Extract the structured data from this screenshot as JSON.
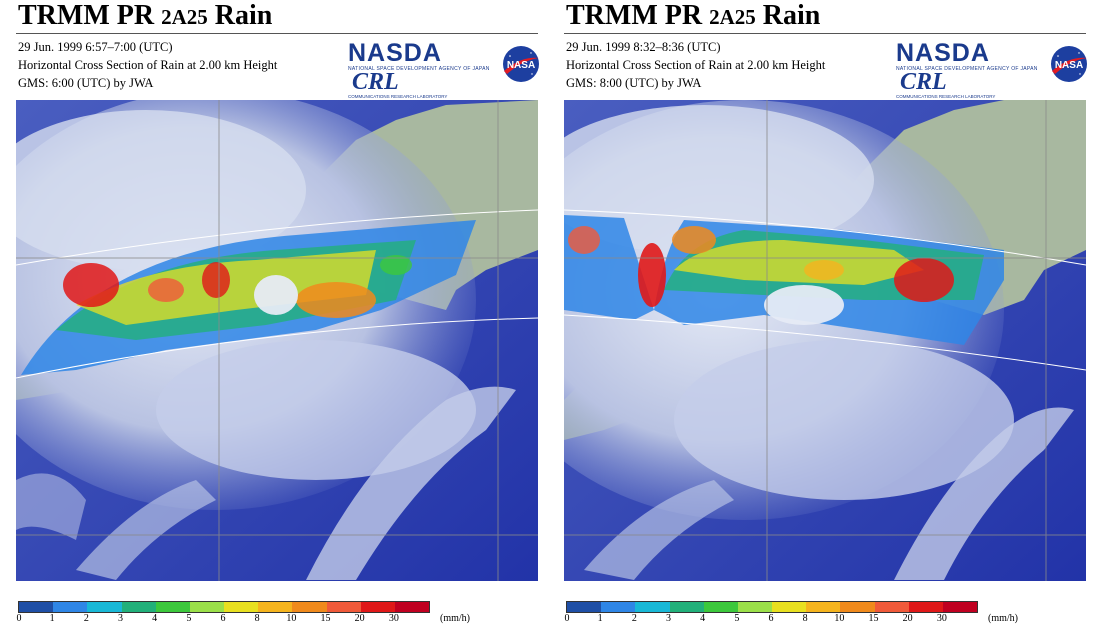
{
  "panels": [
    {
      "title_main": "TRMM PR ",
      "title_sub": "2A25",
      "title_end": " Rain",
      "line1": "29 Jun. 1999 6:57–7:00 (UTC)",
      "line2": "Horizontal Cross Section of Rain at 2.00 km Height",
      "line3": "GMS: 6:00 (UTC) by JWA"
    },
    {
      "title_main": "TRMM PR ",
      "title_sub": "2A25",
      "title_end": " Rain",
      "line1": "29 Jun. 1999 8:32–8:36 (UTC)",
      "line2": "Horizontal Cross Section of Rain at 2.00 km Height",
      "line3": "GMS: 8:00 (UTC) by JWA"
    }
  ],
  "logos": {
    "nasda": "NASDA",
    "nasda_sub": "NATIONAL SPACE DEVELOPMENT AGENCY OF JAPAN",
    "crl": "CRL",
    "crl_sub": "COMMUNICATIONS RESEARCH LABORATORY",
    "nasa": "NASA"
  },
  "legend": {
    "ticks": [
      "0",
      "1",
      "2",
      "3",
      "4",
      "5",
      "6",
      "8",
      "10",
      "15",
      "20",
      "30",
      "(mm/h)"
    ],
    "colors": [
      "#1f4fa6",
      "#2f86e6",
      "#19b8d6",
      "#22b07a",
      "#3cc83c",
      "#9be04a",
      "#e8e020",
      "#f5b41e",
      "#f08a1c",
      "#f05a3a",
      "#e01818",
      "#c00020"
    ]
  }
}
